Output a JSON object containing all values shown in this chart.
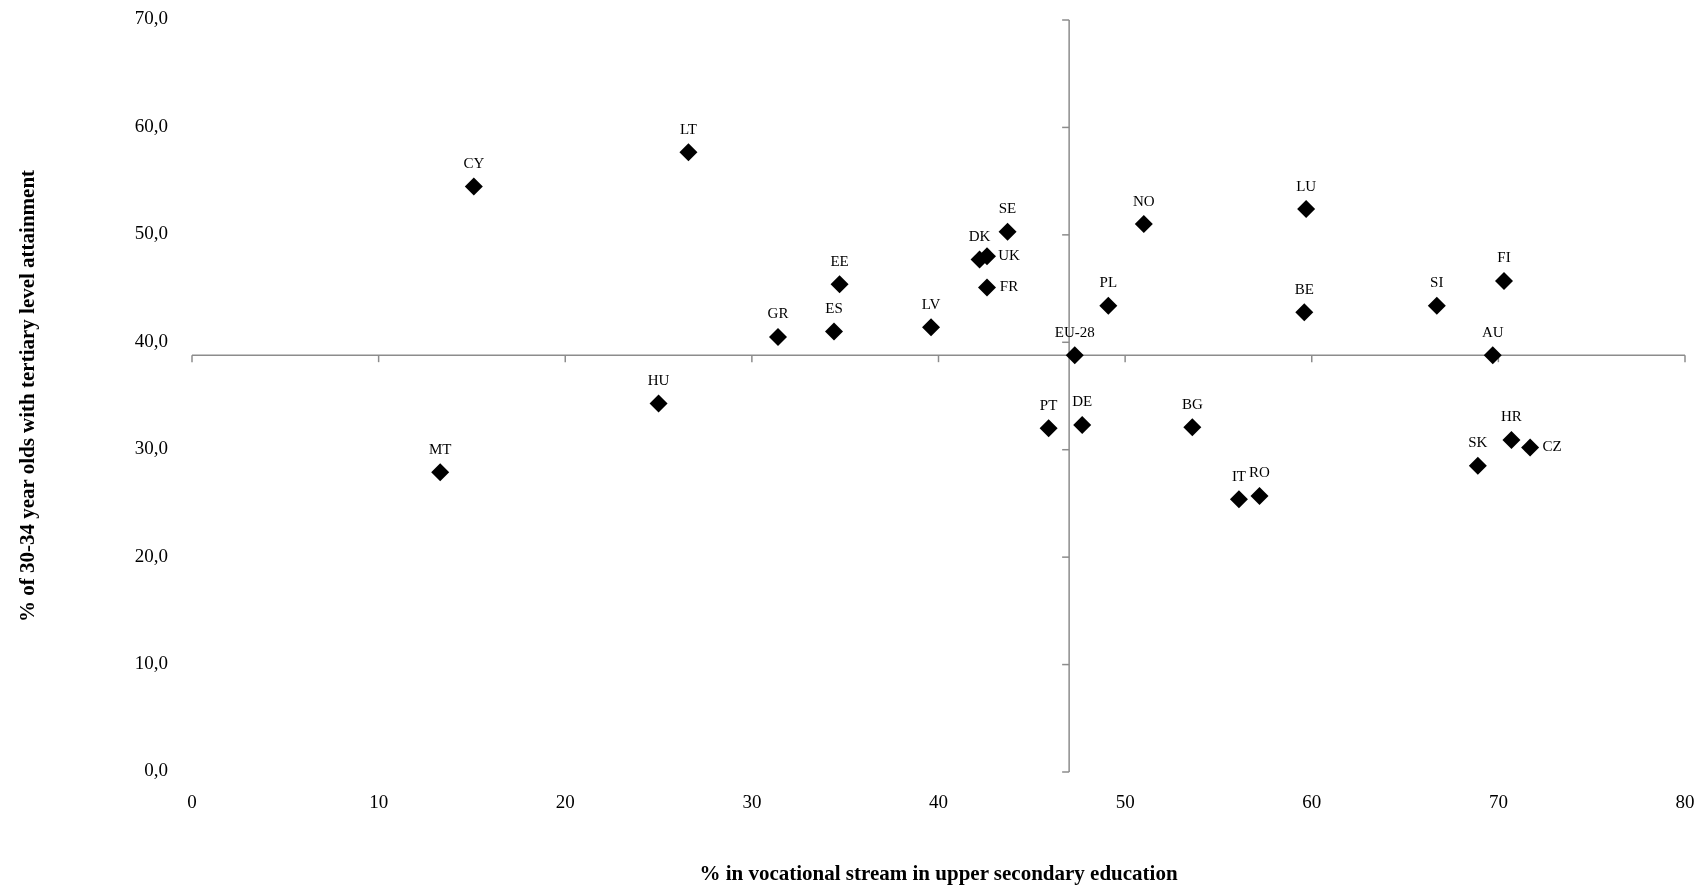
{
  "chart_data": {
    "type": "scatter",
    "xlabel": "% in vocational stream in upper secondary education",
    "ylabel": "% of 30-34 year olds with tertiary level attainment",
    "marker": "diamond",
    "series": [
      {
        "color": "#000000",
        "x": [
          15.1,
          26.6,
          13.3,
          25.0,
          31.4,
          34.4,
          34.7,
          39.6,
          42.2,
          42.6,
          42.6,
          43.7,
          47.3,
          45.9,
          47.7,
          49.1,
          51.0,
          53.6,
          56.1,
          57.2,
          59.7,
          59.6,
          66.7,
          70.3,
          69.7,
          68.9,
          70.7,
          71.7
        ],
        "values": [
          54.5,
          57.7,
          27.9,
          34.3,
          40.5,
          41.0,
          45.4,
          41.4,
          47.7,
          48.0,
          45.1,
          50.3,
          38.8,
          32.0,
          32.3,
          43.4,
          51.0,
          32.1,
          25.4,
          25.7,
          52.4,
          42.8,
          43.4,
          45.7,
          38.8,
          28.5,
          30.9,
          30.2
        ]
      }
    ],
    "annotations": [
      {
        "text": "CY",
        "x": 15.1,
        "y": 54.5
      },
      {
        "text": "LT",
        "x": 26.6,
        "y": 57.7
      },
      {
        "text": "MT",
        "x": 13.3,
        "y": 27.9
      },
      {
        "text": "HU",
        "x": 25.0,
        "y": 34.3
      },
      {
        "text": "GR",
        "x": 31.4,
        "y": 40.5
      },
      {
        "text": "ES",
        "x": 34.4,
        "y": 41.0
      },
      {
        "text": "EE",
        "x": 34.7,
        "y": 45.4
      },
      {
        "text": "LV",
        "x": 39.6,
        "y": 41.4
      },
      {
        "text": "DK",
        "x": 42.2,
        "y": 47.7
      },
      {
        "text": "UK",
        "x": 42.6,
        "y": 48.0
      },
      {
        "text": "FR",
        "x": 42.6,
        "y": 45.1
      },
      {
        "text": "SE",
        "x": 43.7,
        "y": 50.3
      },
      {
        "text": "EU-28",
        "x": 47.3,
        "y": 38.8
      },
      {
        "text": "PT",
        "x": 45.9,
        "y": 32.0
      },
      {
        "text": "DE",
        "x": 47.7,
        "y": 32.3
      },
      {
        "text": "PL",
        "x": 49.1,
        "y": 43.4
      },
      {
        "text": "NO",
        "x": 51.0,
        "y": 51.0
      },
      {
        "text": "BG",
        "x": 53.6,
        "y": 32.1
      },
      {
        "text": "IT",
        "x": 56.1,
        "y": 25.4
      },
      {
        "text": "RO",
        "x": 57.2,
        "y": 25.7
      },
      {
        "text": "LU",
        "x": 59.7,
        "y": 52.4
      },
      {
        "text": "BE",
        "x": 59.6,
        "y": 42.8
      },
      {
        "text": "SI",
        "x": 66.7,
        "y": 43.4
      },
      {
        "text": "FI",
        "x": 70.3,
        "y": 45.7
      },
      {
        "text": "AU",
        "x": 69.7,
        "y": 38.8
      },
      {
        "text": "SK",
        "x": 68.9,
        "y": 28.5
      },
      {
        "text": "HR",
        "x": 70.7,
        "y": 30.9
      },
      {
        "text": "CZ",
        "x": 71.7,
        "y": 30.2
      }
    ],
    "xlim": [
      0,
      80
    ],
    "xticks": [
      0,
      10,
      20,
      30,
      40,
      50,
      60,
      70,
      80
    ],
    "ylim": [
      0,
      70
    ],
    "yticks": [
      {
        "value": 0,
        "label": "0,0"
      },
      {
        "value": 10,
        "label": "10,0"
      },
      {
        "value": 20,
        "label": "20,0"
      },
      {
        "value": 30,
        "label": "30,0"
      },
      {
        "value": 40,
        "label": "40,0"
      },
      {
        "value": 50,
        "label": "50,0"
      },
      {
        "value": 60,
        "label": "60,0"
      },
      {
        "value": 70,
        "label": "70,0"
      }
    ],
    "ref_lines": [
      {
        "axis": "y",
        "value": 38.8,
        "color": "#8c8c8c"
      },
      {
        "axis": "x",
        "value": 47.0,
        "color": "#8c8c8c"
      }
    ],
    "grid": false
  }
}
